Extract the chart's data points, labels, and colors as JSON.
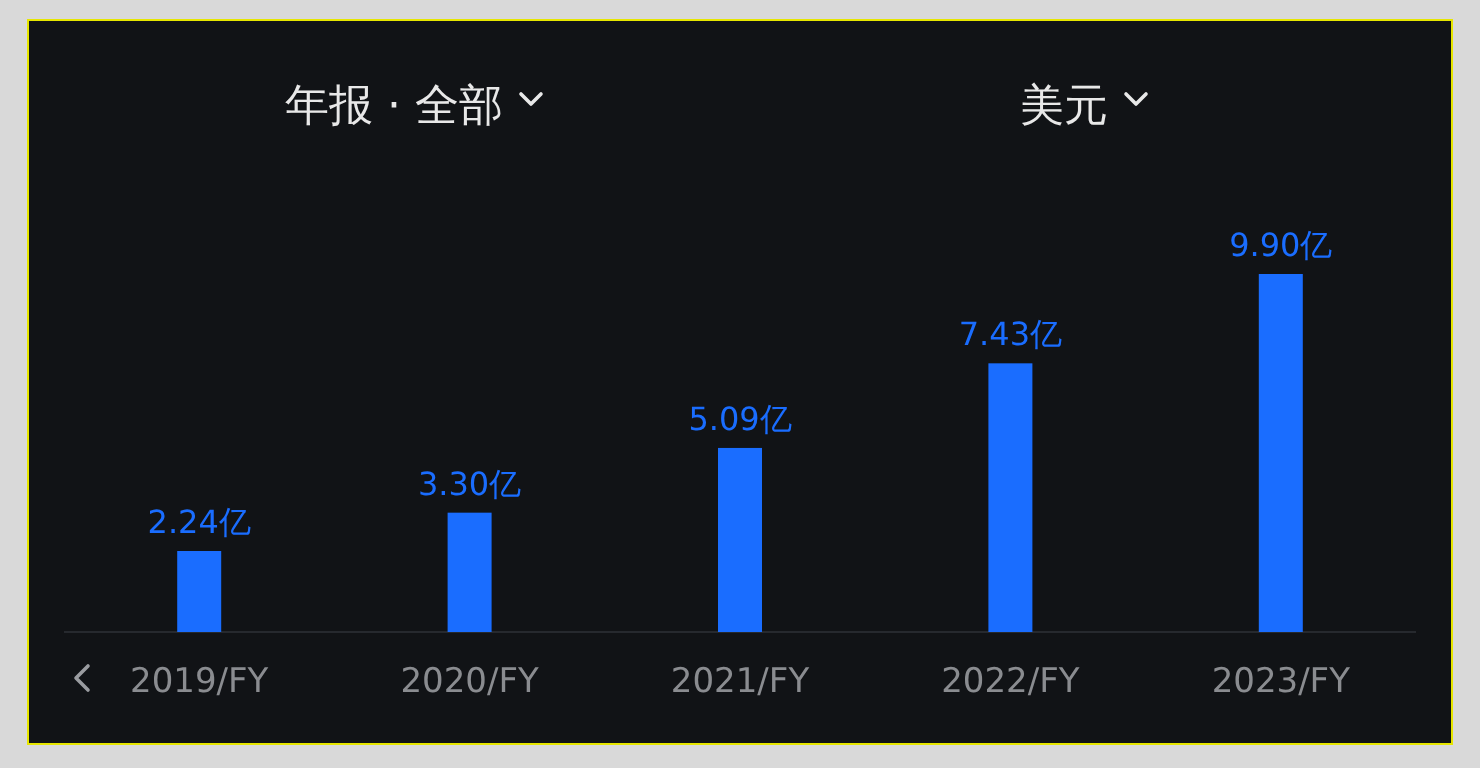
{
  "chart_data": {
    "type": "bar",
    "title": "年报 · 全部",
    "subtitle": "美元",
    "categories": [
      "2019/FY",
      "2020/FY",
      "2021/FY",
      "2022/FY",
      "2023/FY"
    ],
    "values": [
      2.24,
      3.3,
      5.09,
      7.43,
      9.9
    ],
    "value_labels": [
      "2.24亿",
      "3.30亿",
      "5.09亿",
      "7.43亿",
      "9.90亿"
    ],
    "color": "#1a6dff"
  }
}
